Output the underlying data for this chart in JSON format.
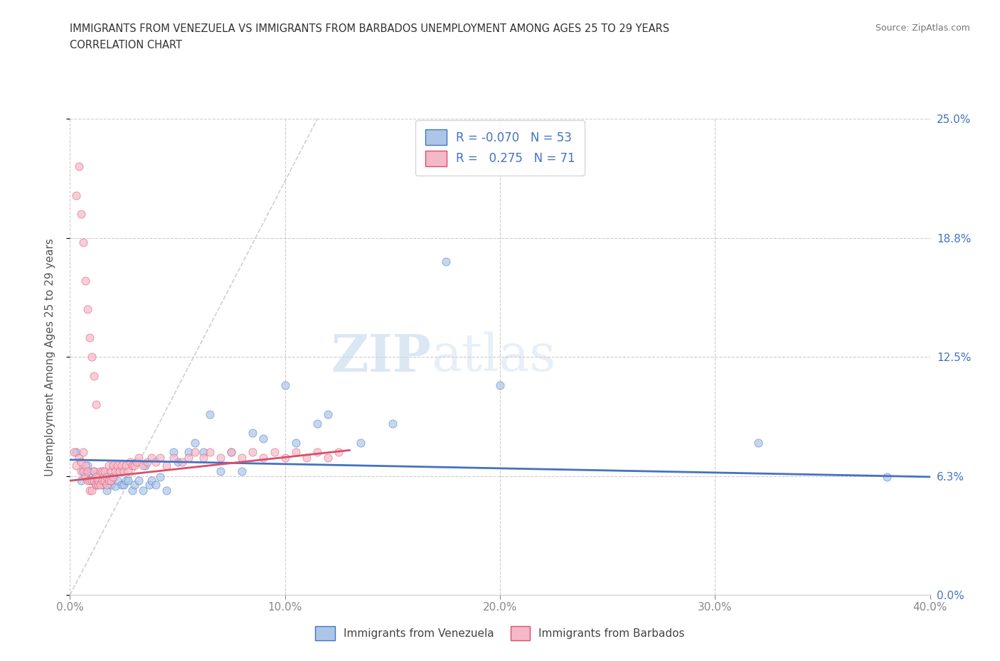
{
  "title_line1": "IMMIGRANTS FROM VENEZUELA VS IMMIGRANTS FROM BARBADOS UNEMPLOYMENT AMONG AGES 25 TO 29 YEARS",
  "title_line2": "CORRELATION CHART",
  "source": "Source: ZipAtlas.com",
  "ylabel": "Unemployment Among Ages 25 to 29 years",
  "xlim": [
    0.0,
    0.4
  ],
  "ylim": [
    0.0,
    0.25
  ],
  "yticks": [
    0.0,
    0.0625,
    0.125,
    0.1875,
    0.25
  ],
  "ytick_labels": [
    "0.0%",
    "6.3%",
    "12.5%",
    "18.8%",
    "25.0%"
  ],
  "xticks": [
    0.0,
    0.1,
    0.2,
    0.3,
    0.4
  ],
  "xtick_labels": [
    "0.0%",
    "10.0%",
    "20.0%",
    "30.0%",
    "40.0%"
  ],
  "watermark_zip": "ZIP",
  "watermark_atlas": "atlas",
  "color_venezuela": "#adc6e8",
  "color_barbados": "#f4b8c8",
  "color_line_venezuela": "#4472c4",
  "color_line_barbados": "#d94f6a",
  "color_diagonal": "#d0d0d0",
  "color_axis_text": "#4472c4",
  "legend_label1": "Immigrants from Venezuela",
  "legend_label2": "Immigrants from Barbados",
  "venezuela_x": [
    0.003,
    0.005,
    0.006,
    0.007,
    0.008,
    0.01,
    0.01,
    0.011,
    0.012,
    0.013,
    0.015,
    0.016,
    0.017,
    0.018,
    0.019,
    0.02,
    0.021,
    0.022,
    0.024,
    0.025,
    0.026,
    0.027,
    0.029,
    0.03,
    0.032,
    0.034,
    0.035,
    0.037,
    0.038,
    0.04,
    0.042,
    0.045,
    0.048,
    0.05,
    0.055,
    0.058,
    0.062,
    0.065,
    0.07,
    0.075,
    0.08,
    0.085,
    0.09,
    0.1,
    0.105,
    0.115,
    0.12,
    0.135,
    0.15,
    0.175,
    0.2,
    0.32,
    0.38
  ],
  "venezuela_y": [
    0.075,
    0.06,
    0.065,
    0.065,
    0.068,
    0.06,
    0.063,
    0.065,
    0.058,
    0.06,
    0.058,
    0.06,
    0.055,
    0.062,
    0.058,
    0.062,
    0.057,
    0.06,
    0.058,
    0.058,
    0.06,
    0.06,
    0.055,
    0.058,
    0.06,
    0.055,
    0.068,
    0.058,
    0.06,
    0.058,
    0.062,
    0.055,
    0.075,
    0.07,
    0.075,
    0.08,
    0.075,
    0.095,
    0.065,
    0.075,
    0.065,
    0.085,
    0.082,
    0.11,
    0.08,
    0.09,
    0.095,
    0.08,
    0.09,
    0.175,
    0.11,
    0.08,
    0.062
  ],
  "barbados_x": [
    0.002,
    0.003,
    0.004,
    0.005,
    0.005,
    0.006,
    0.006,
    0.007,
    0.007,
    0.008,
    0.008,
    0.009,
    0.009,
    0.01,
    0.01,
    0.011,
    0.011,
    0.012,
    0.012,
    0.013,
    0.013,
    0.014,
    0.014,
    0.015,
    0.015,
    0.016,
    0.016,
    0.017,
    0.017,
    0.018,
    0.018,
    0.019,
    0.019,
    0.02,
    0.02,
    0.021,
    0.022,
    0.023,
    0.024,
    0.025,
    0.026,
    0.027,
    0.028,
    0.029,
    0.03,
    0.031,
    0.032,
    0.034,
    0.036,
    0.038,
    0.04,
    0.042,
    0.045,
    0.048,
    0.052,
    0.055,
    0.058,
    0.062,
    0.065,
    0.07,
    0.075,
    0.08,
    0.085,
    0.09,
    0.095,
    0.1,
    0.105,
    0.11,
    0.115,
    0.12,
    0.125
  ],
  "barbados_y": [
    0.075,
    0.068,
    0.072,
    0.065,
    0.07,
    0.065,
    0.075,
    0.062,
    0.068,
    0.06,
    0.065,
    0.055,
    0.06,
    0.055,
    0.06,
    0.06,
    0.065,
    0.058,
    0.062,
    0.058,
    0.06,
    0.058,
    0.065,
    0.06,
    0.065,
    0.06,
    0.065,
    0.058,
    0.062,
    0.06,
    0.068,
    0.06,
    0.065,
    0.062,
    0.068,
    0.065,
    0.068,
    0.065,
    0.068,
    0.065,
    0.068,
    0.065,
    0.07,
    0.068,
    0.068,
    0.07,
    0.072,
    0.068,
    0.07,
    0.072,
    0.07,
    0.072,
    0.068,
    0.072,
    0.07,
    0.072,
    0.075,
    0.072,
    0.075,
    0.072,
    0.075,
    0.072,
    0.075,
    0.072,
    0.075,
    0.072,
    0.075,
    0.072,
    0.075,
    0.072,
    0.075
  ],
  "barbados_outliers_x": [
    0.003,
    0.004,
    0.005,
    0.006,
    0.007,
    0.008,
    0.009,
    0.01,
    0.011,
    0.012
  ],
  "barbados_outliers_y": [
    0.21,
    0.225,
    0.2,
    0.185,
    0.165,
    0.15,
    0.135,
    0.125,
    0.115,
    0.1
  ]
}
